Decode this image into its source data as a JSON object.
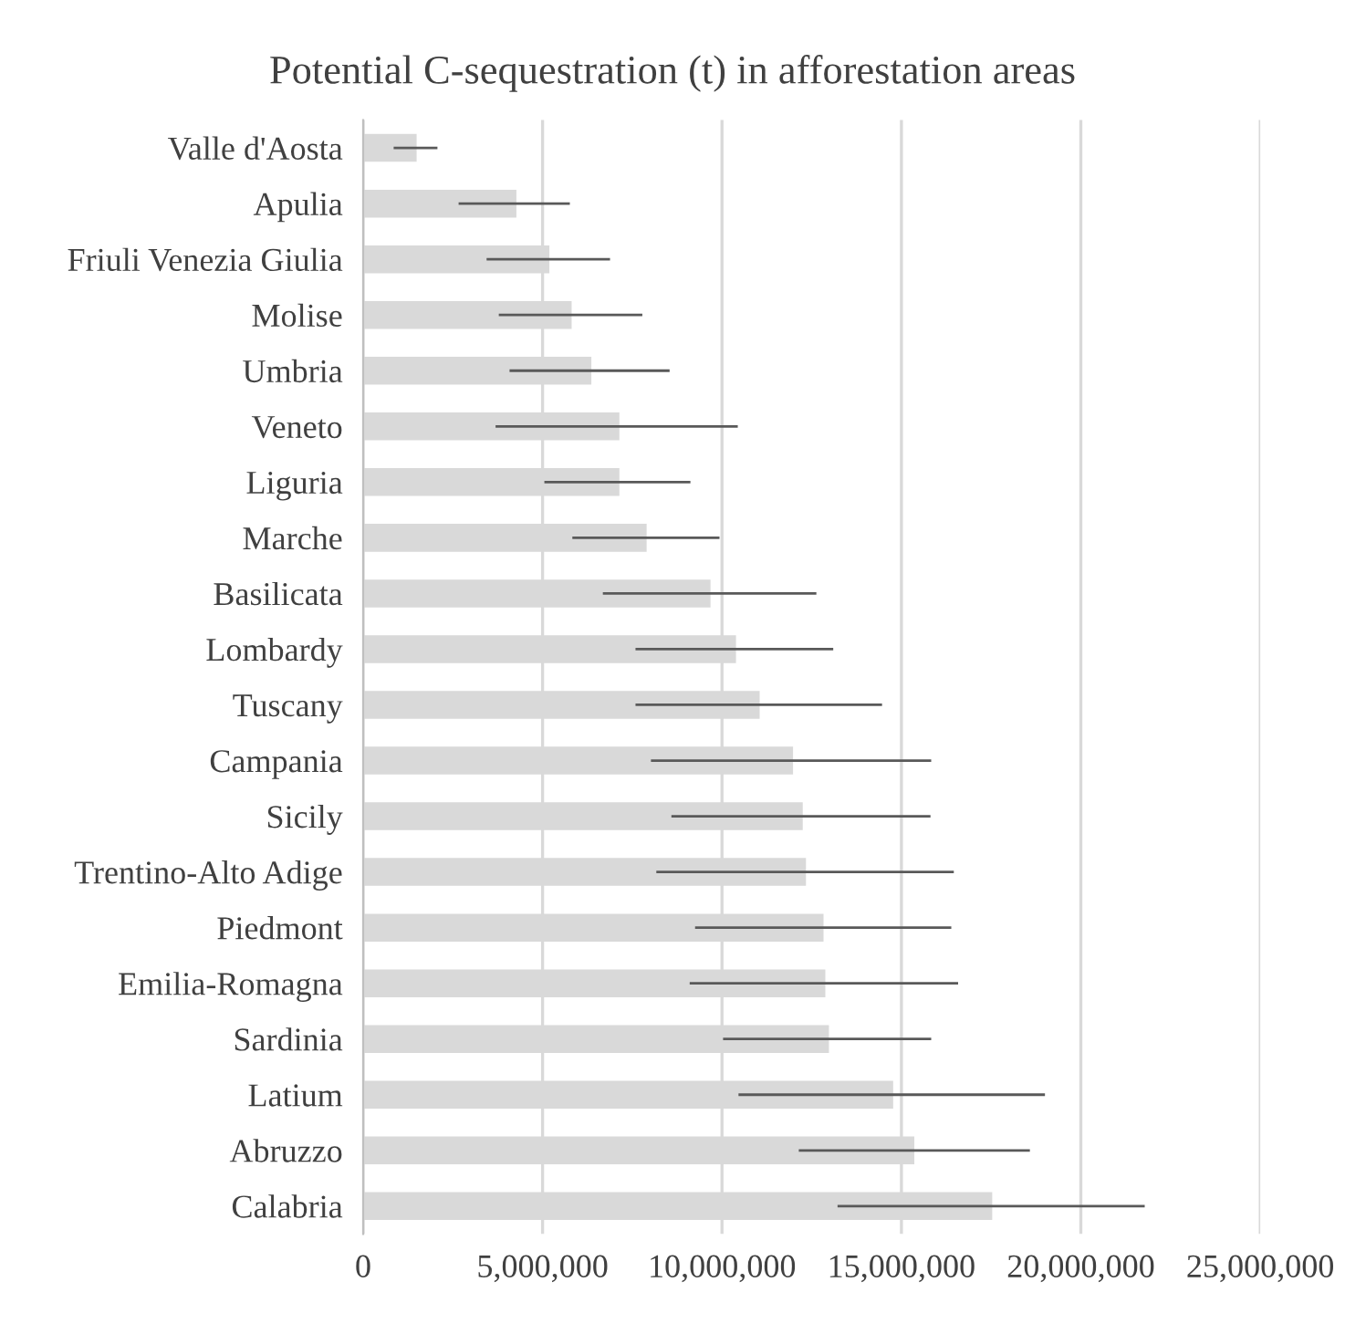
{
  "chart_data": {
    "type": "bar",
    "orientation": "horizontal",
    "title": "Potential C-sequestration (t) in afforestation areas",
    "categories": [
      "Valle d'Aosta",
      "Apulia",
      "Friuli Venezia Giulia",
      "Molise",
      "Umbria",
      "Veneto",
      "Liguria",
      "Marche",
      "Basilicata",
      "Lombardy",
      "Tuscany",
      "Campania",
      "Sicily",
      "Trentino-Alto Adige",
      "Piedmont",
      "Emilia-Romagna",
      "Sardinia",
      "Latium",
      "Abruzzo",
      "Calabria"
    ],
    "values": [
      1490000,
      4270000,
      5190000,
      5810000,
      6360000,
      7140000,
      7140000,
      7900000,
      9680000,
      10390000,
      11050000,
      11980000,
      12250000,
      12340000,
      12830000,
      12880000,
      12980000,
      14770000,
      15360000,
      17530000
    ],
    "errors": [
      [
        850000,
        2070000
      ],
      [
        2660000,
        5760000
      ],
      [
        3440000,
        6880000
      ],
      [
        3780000,
        7780000
      ],
      [
        4080000,
        8540000
      ],
      [
        3690000,
        10440000
      ],
      [
        5050000,
        9120000
      ],
      [
        5830000,
        9930000
      ],
      [
        6680000,
        12630000
      ],
      [
        7590000,
        13100000
      ],
      [
        7590000,
        14460000
      ],
      [
        8020000,
        15830000
      ],
      [
        8590000,
        15810000
      ],
      [
        8170000,
        16460000
      ],
      [
        9250000,
        16390000
      ],
      [
        9100000,
        16580000
      ],
      [
        10030000,
        15830000
      ],
      [
        10460000,
        19000000
      ],
      [
        12140000,
        18580000
      ],
      [
        13220000,
        21780000
      ]
    ],
    "color": "#d9d9d9",
    "xlim": [
      0,
      25000000
    ],
    "xticks": [
      {
        "value": 0,
        "label": "0"
      },
      {
        "value": 5000000,
        "label": "5,000,000"
      },
      {
        "value": 10000000,
        "label": "10,000,000"
      },
      {
        "value": 15000000,
        "label": "15,000,000"
      },
      {
        "value": 20000000,
        "label": "20,000,000"
      },
      {
        "value": 25000000,
        "label": "25,000,000"
      }
    ],
    "grid": "x"
  }
}
